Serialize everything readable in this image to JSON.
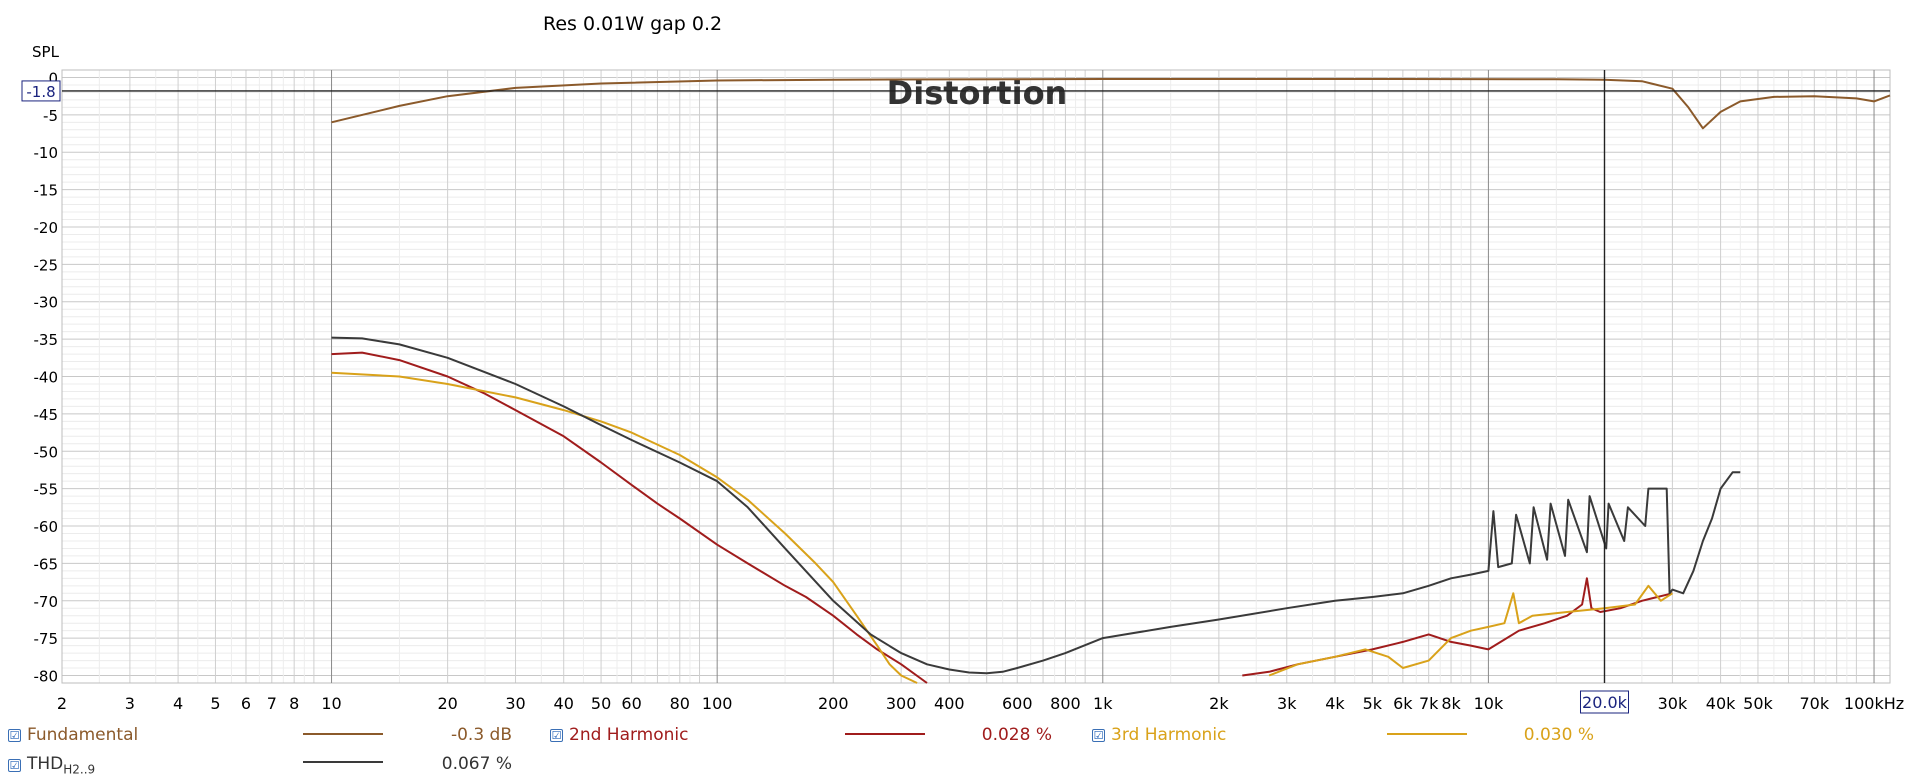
{
  "chart_data": {
    "type": "line",
    "title": "Res 0.01W gap 0.2",
    "overlay_label": "Distortion",
    "ylabel": "SPL",
    "x_unit": "Hz",
    "x_scale": "log",
    "xlim": [
      2,
      110000
    ],
    "ylim": [
      -81,
      1
    ],
    "grid": true,
    "y_ticks": [
      0,
      -5,
      -10,
      -15,
      -20,
      -25,
      -30,
      -35,
      -40,
      -45,
      -50,
      -55,
      -60,
      -65,
      -70,
      -75,
      -80
    ],
    "y_tick_labels": [
      "0",
      "-5",
      "-10",
      "-15",
      "-20",
      "-25",
      "-30",
      "-35",
      "-40",
      "-45",
      "-50",
      "-55",
      "-60",
      "-65",
      "-70",
      "-75",
      "-80"
    ],
    "x_ticks": [
      2,
      3,
      4,
      5,
      6,
      7,
      8,
      10,
      20,
      30,
      40,
      50,
      60,
      80,
      100,
      200,
      300,
      400,
      600,
      800,
      1000,
      2000,
      3000,
      4000,
      5000,
      6000,
      7000,
      8000,
      10000,
      20000,
      30000,
      40000,
      50000,
      70000,
      100000
    ],
    "x_tick_labels": [
      "2",
      "3",
      "4",
      "5",
      "6",
      "7",
      "8",
      "10",
      "20",
      "30",
      "40",
      "50",
      "60",
      "80",
      "100",
      "200",
      "300",
      "400",
      "600",
      "800",
      "1k",
      "2k",
      "3k",
      "4k",
      "5k",
      "6k",
      "7k",
      "8k",
      "10k",
      "20.0k",
      "30k",
      "40k",
      "50k",
      "70k",
      "100kHz"
    ],
    "cursor": {
      "x": 20000,
      "x_label": "20.0k",
      "y": -1.8,
      "y_label": "-1.8"
    },
    "series": [
      {
        "name": "Fundamental",
        "color": "#8b5a2b",
        "x": [
          10,
          15,
          20,
          30,
          50,
          100,
          200,
          1000,
          5000,
          15000,
          20000,
          25000,
          30000,
          33000,
          36000,
          40000,
          45000,
          55000,
          70000,
          90000,
          100000,
          110000
        ],
        "y": [
          -6,
          -3.8,
          -2.5,
          -1.4,
          -0.8,
          -0.4,
          -0.3,
          -0.2,
          -0.2,
          -0.25,
          -0.3,
          -0.5,
          -1.5,
          -4.0,
          -6.8,
          -4.6,
          -3.2,
          -2.6,
          -2.5,
          -2.8,
          -3.2,
          -2.4
        ]
      },
      {
        "name": "2nd Harmonic",
        "color": "#a01c1c",
        "x": [
          10,
          12,
          15,
          20,
          25,
          30,
          40,
          50,
          60,
          70,
          80,
          100,
          120,
          150,
          170,
          200,
          230,
          260,
          300,
          350
        ],
        "y": [
          -37,
          -36.8,
          -37.8,
          -40,
          -42.3,
          -44.5,
          -48,
          -51.5,
          -54.5,
          -57,
          -59,
          -62.5,
          -65,
          -68,
          -69.5,
          -72,
          -74.5,
          -76.5,
          -78.5,
          -81
        ]
      },
      {
        "name": "2nd Harmonic",
        "color": "#a01c1c",
        "x": [
          2300,
          2700,
          3200,
          4000,
          5000,
          6000,
          7000,
          8000,
          9000,
          10000,
          12000,
          14000,
          16000,
          17500,
          18000,
          18500,
          19500,
          22000,
          25000,
          30000
        ],
        "y": [
          -80,
          -79.5,
          -78.5,
          -77.5,
          -76.5,
          -75.5,
          -74.5,
          -75.5,
          -76,
          -76.5,
          -74,
          -73,
          -72,
          -70.5,
          -67,
          -71,
          -71.5,
          -71,
          -70,
          -69
        ]
      },
      {
        "name": "3rd Harmonic",
        "color": "#d9a21a",
        "x": [
          10,
          15,
          20,
          30,
          40,
          50,
          60,
          80,
          100,
          120,
          150,
          180,
          200,
          230,
          260,
          280,
          300,
          330
        ],
        "y": [
          -39.5,
          -40,
          -41,
          -42.8,
          -44.5,
          -46,
          -47.5,
          -50.5,
          -53.5,
          -56.5,
          -61,
          -65,
          -67.5,
          -72,
          -76,
          -78.5,
          -80,
          -81
        ]
      },
      {
        "name": "3rd Harmonic",
        "color": "#d9a21a",
        "x": [
          2700,
          3200,
          4000,
          4800,
          5500,
          6000,
          7000,
          8000,
          9000,
          10000,
          11000,
          11600,
          12000,
          13000,
          16000,
          20000,
          24000,
          26000,
          28000,
          30000
        ],
        "y": [
          -80,
          -78.5,
          -77.5,
          -76.5,
          -77.5,
          -79,
          -78,
          -75,
          -74,
          -73.5,
          -73,
          -69,
          -73,
          -72,
          -71.5,
          -71,
          -70.5,
          -68,
          -70,
          -69
        ]
      },
      {
        "name": "THD",
        "label_sub": "H2..9",
        "color": "#3a3a3a",
        "x": [
          10,
          12,
          15,
          20,
          30,
          40,
          50,
          60,
          80,
          100,
          120,
          150,
          200,
          250,
          300,
          350,
          400,
          450,
          500,
          550,
          600,
          700,
          800,
          1000,
          1500,
          2000,
          3000,
          4000,
          5000,
          6000,
          7000,
          8000,
          9000,
          10000,
          10300,
          10600,
          11500,
          11800,
          12800,
          13100,
          14200,
          14500,
          15800,
          16100,
          18000,
          18300,
          20200,
          20500,
          22500,
          23000,
          25500,
          26000,
          29000,
          29500,
          30000,
          32000,
          34000,
          36000,
          38000,
          40000,
          43000,
          45000
        ],
        "y": [
          -34.8,
          -34.9,
          -35.7,
          -37.5,
          -41,
          -44,
          -46.5,
          -48.5,
          -51.5,
          -54,
          -57.5,
          -63,
          -70,
          -74.5,
          -77,
          -78.5,
          -79.2,
          -79.6,
          -79.7,
          -79.5,
          -79,
          -78,
          -77,
          -75,
          -73.5,
          -72.5,
          -71,
          -70,
          -69.5,
          -69,
          -68,
          -67,
          -66.5,
          -66,
          -58,
          -65.5,
          -65,
          -58.5,
          -65,
          -57.5,
          -64.5,
          -57,
          -64,
          -56.5,
          -63.5,
          -56,
          -63,
          -57,
          -62,
          -57.5,
          -60,
          -55,
          -55,
          -69,
          -68.5,
          -69,
          -66,
          -62,
          -59,
          -55,
          -52.8,
          -52.8
        ]
      }
    ]
  },
  "legend": {
    "items": [
      {
        "label": "Fundamental",
        "value": "-0.3 dB",
        "color": "#8b5a2b",
        "checked": "☑"
      },
      {
        "label": "2nd Harmonic",
        "value": "0.028 %",
        "color": "#a01c1c",
        "checked": "☑"
      },
      {
        "label": "3rd Harmonic",
        "value": "0.030 %",
        "color": "#d9a21a",
        "checked": "☑"
      },
      {
        "label": "THD",
        "label_sub": "H2..9",
        "value": "0.067 %",
        "color": "#3a3a3a",
        "checked": "☑"
      }
    ]
  }
}
